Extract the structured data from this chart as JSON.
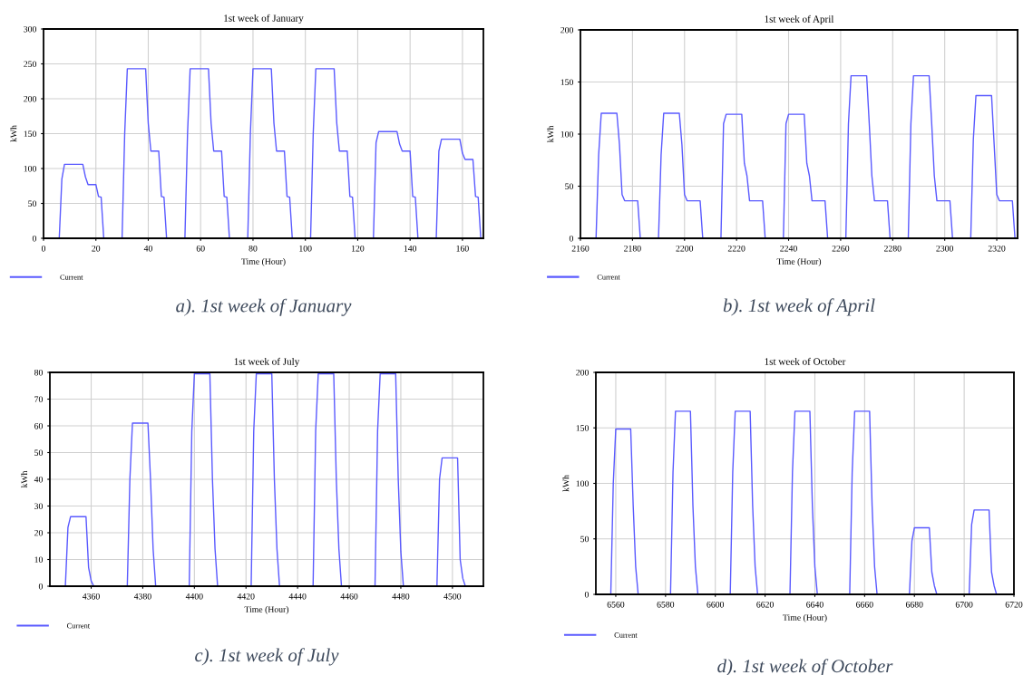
{
  "chart_data": [
    {
      "type": "line",
      "title": "1st week of January",
      "xlabel": "Time (Hour)",
      "ylabel": "kWh",
      "xlim": [
        0,
        168
      ],
      "ylim": [
        0,
        300
      ],
      "xticks": [
        0,
        20,
        40,
        60,
        80,
        100,
        120,
        140,
        160
      ],
      "yticks": [
        0,
        50,
        100,
        150,
        200,
        250,
        300
      ],
      "grid": true,
      "legend": "bottom left",
      "annotations": [
        "a). 1st week of January"
      ],
      "x": [
        0,
        6,
        7,
        8,
        15,
        16,
        17,
        20,
        21,
        22,
        23,
        30,
        31,
        32,
        39,
        40,
        41,
        44,
        45,
        46,
        47,
        54,
        55,
        56,
        63,
        64,
        65,
        68,
        69,
        70,
        71,
        78,
        79,
        80,
        87,
        88,
        89,
        92,
        93,
        94,
        95,
        102,
        103,
        104,
        111,
        112,
        113,
        116,
        117,
        118,
        119,
        126,
        127,
        128,
        135,
        136,
        137,
        140,
        141,
        142,
        143,
        150,
        151,
        152,
        159,
        160,
        161,
        164,
        165,
        166,
        167,
        168
      ],
      "series": [
        {
          "name": "Current",
          "color": "#5a5aff",
          "values": [
            0,
            0,
            85,
            106,
            106,
            88,
            77,
            77,
            60,
            59,
            0,
            0,
            150,
            243,
            243,
            165,
            125,
            125,
            60,
            59,
            0,
            0,
            150,
            243,
            243,
            165,
            125,
            125,
            60,
            59,
            0,
            0,
            150,
            243,
            243,
            165,
            125,
            125,
            60,
            59,
            0,
            0,
            150,
            243,
            243,
            165,
            125,
            125,
            60,
            59,
            0,
            0,
            137,
            153,
            153,
            135,
            125,
            125,
            60,
            59,
            0,
            0,
            125,
            142,
            142,
            122,
            113,
            113,
            60,
            59,
            0,
            0
          ]
        }
      ]
    },
    {
      "type": "line",
      "title": "1st week of April",
      "xlabel": "Time (Hour)",
      "ylabel": "kWh",
      "xlim": [
        2160,
        2328
      ],
      "ylim": [
        0,
        200
      ],
      "xticks": [
        2160,
        2180,
        2200,
        2220,
        2240,
        2260,
        2280,
        2300,
        2320
      ],
      "yticks": [
        0,
        50,
        100,
        150,
        200
      ],
      "grid": true,
      "legend": "bottom left",
      "annotations": [
        "b). 1st week of April"
      ],
      "x": [
        2160,
        2166,
        2167,
        2168,
        2174,
        2175,
        2176,
        2177,
        2182,
        2183,
        2190,
        2191,
        2192,
        2198,
        2199,
        2200,
        2201,
        2206,
        2207,
        2214,
        2215,
        2216,
        2222,
        2223,
        2224,
        2225,
        2230,
        2231,
        2238,
        2239,
        2240,
        2246,
        2247,
        2248,
        2249,
        2254,
        2255,
        2262,
        2263,
        2264,
        2270,
        2271,
        2272,
        2273,
        2278,
        2279,
        2286,
        2287,
        2288,
        2294,
        2295,
        2296,
        2297,
        2302,
        2303,
        2310,
        2311,
        2312,
        2318,
        2319,
        2320,
        2321,
        2326,
        2327,
        2328
      ],
      "series": [
        {
          "name": "Current",
          "color": "#5a5aff",
          "values": [
            0,
            0,
            80,
            120,
            120,
            90,
            42,
            36,
            36,
            0,
            0,
            80,
            120,
            120,
            90,
            42,
            36,
            36,
            0,
            0,
            110,
            119,
            119,
            72,
            60,
            36,
            36,
            0,
            0,
            110,
            119,
            119,
            72,
            60,
            36,
            36,
            0,
            0,
            110,
            156,
            156,
            110,
            60,
            36,
            36,
            0,
            0,
            110,
            156,
            156,
            110,
            60,
            36,
            36,
            0,
            0,
            95,
            137,
            137,
            90,
            42,
            36,
            36,
            0,
            0
          ]
        }
      ]
    },
    {
      "type": "line",
      "title": "1st week of July",
      "xlabel": "Time (Hour)",
      "ylabel": "kWh",
      "xlim": [
        4344,
        4512
      ],
      "ylim": [
        0,
        80
      ],
      "xticks": [
        4360,
        4380,
        4400,
        4420,
        4440,
        4460,
        4480,
        4500
      ],
      "yticks": [
        0,
        10,
        20,
        30,
        40,
        50,
        60,
        70,
        80
      ],
      "grid": true,
      "legend": "bottom left",
      "annotations": [
        "c). 1st week of July"
      ],
      "x": [
        4344,
        4350,
        4351,
        4352,
        4358,
        4359,
        4360,
        4361,
        4374,
        4375,
        4376,
        4382,
        4383,
        4384,
        4385,
        4398,
        4399,
        4400,
        4406,
        4407,
        4408,
        4409,
        4422,
        4423,
        4424,
        4430,
        4431,
        4432,
        4433,
        4446,
        4447,
        4448,
        4454,
        4455,
        4456,
        4457,
        4470,
        4471,
        4472,
        4478,
        4479,
        4480,
        4481,
        4494,
        4495,
        4496,
        4502,
        4503,
        4504,
        4505,
        4512
      ],
      "series": [
        {
          "name": "Current",
          "color": "#5a5aff",
          "values": [
            0,
            0,
            22,
            26,
            26,
            7,
            2,
            0,
            0,
            40,
            61,
            61,
            40,
            14,
            0,
            0,
            58,
            79.5,
            79.5,
            40,
            14,
            0,
            0,
            58,
            79.5,
            79.5,
            40,
            14,
            0,
            0,
            58,
            79.5,
            79.5,
            40,
            14,
            0,
            0,
            58,
            79.5,
            79.5,
            40,
            13,
            0,
            0,
            40,
            48,
            48,
            10,
            3,
            0,
            0
          ]
        }
      ]
    },
    {
      "type": "line",
      "title": "1st week of October",
      "xlabel": "Time (Hour)",
      "ylabel": "kWh",
      "xlim": [
        6552,
        6720
      ],
      "ylim": [
        0,
        200
      ],
      "xticks": [
        6560,
        6580,
        6600,
        6620,
        6640,
        6660,
        6680,
        6700,
        6720
      ],
      "yticks": [
        0,
        50,
        100,
        150,
        200
      ],
      "grid": true,
      "legend": "bottom left",
      "annotations": [
        "d). 1st week of October"
      ],
      "x": [
        6552,
        6558,
        6559,
        6560,
        6566,
        6567,
        6568,
        6569,
        6582,
        6583,
        6584,
        6590,
        6591,
        6592,
        6593,
        6606,
        6607,
        6608,
        6614,
        6615,
        6616,
        6617,
        6630,
        6631,
        6632,
        6638,
        6639,
        6640,
        6641,
        6654,
        6655,
        6656,
        6662,
        6663,
        6664,
        6665,
        6678,
        6679,
        6680,
        6686,
        6687,
        6688,
        6689,
        6702,
        6703,
        6704,
        6710,
        6711,
        6712,
        6713,
        6720
      ],
      "series": [
        {
          "name": "Current",
          "color": "#5a5aff",
          "values": [
            0,
            0,
            100,
            149,
            149,
            80,
            25,
            0,
            0,
            110,
            165,
            165,
            80,
            25,
            0,
            0,
            110,
            165,
            165,
            80,
            25,
            0,
            0,
            110,
            165,
            165,
            80,
            25,
            0,
            0,
            110,
            165,
            165,
            80,
            25,
            0,
            0,
            48,
            60,
            60,
            20,
            8,
            0,
            0,
            63,
            76,
            76,
            20,
            8,
            0,
            0
          ]
        }
      ]
    }
  ]
}
